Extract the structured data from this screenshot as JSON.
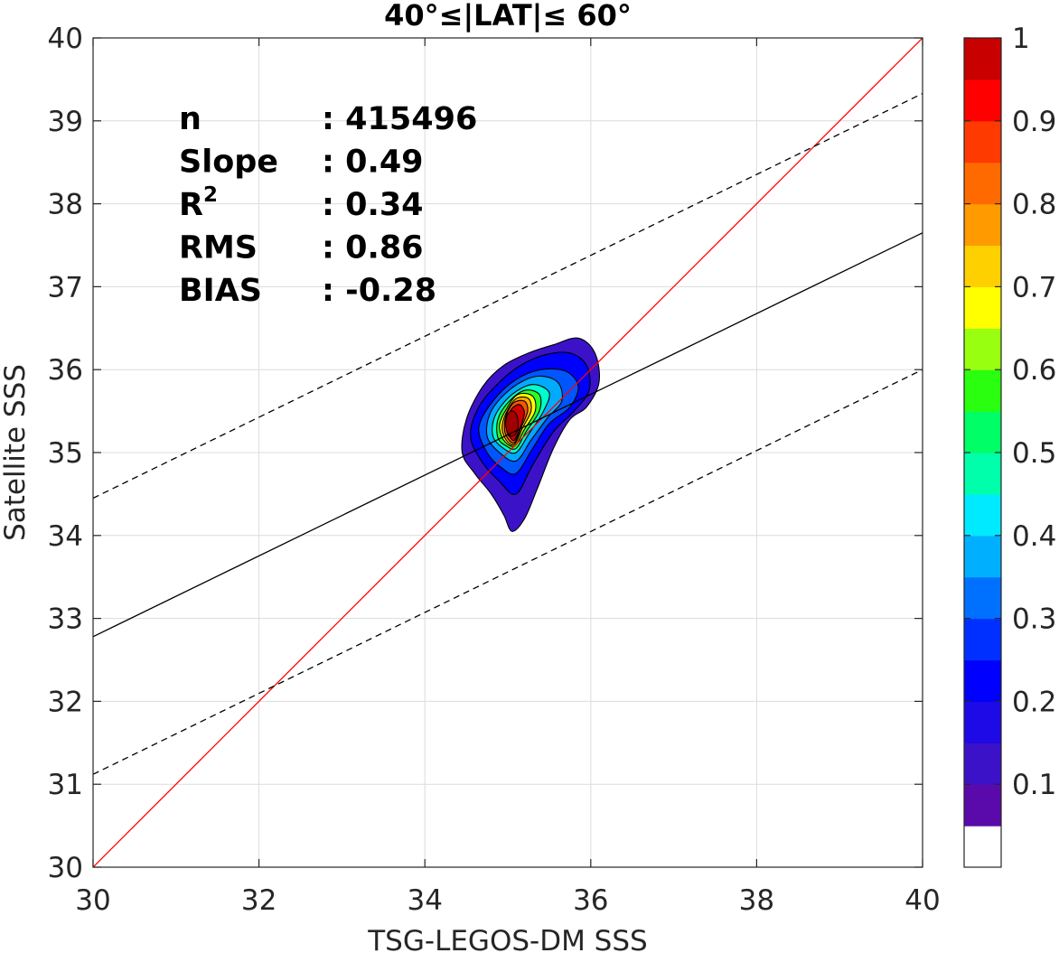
{
  "chart_data": {
    "type": "heatmap",
    "subtype": "density-contour-scatter",
    "title": "40°≤|LAT|≤ 60°",
    "xlabel": "TSG-LEGOS-DM SSS",
    "ylabel": "Satellite SSS",
    "xlim": [
      30,
      40
    ],
    "ylim": [
      30,
      40
    ],
    "xticks": [
      30,
      32,
      34,
      36,
      38,
      40
    ],
    "yticks": [
      30,
      31,
      32,
      33,
      34,
      35,
      36,
      37,
      38,
      39,
      40
    ],
    "grid": true,
    "stats": [
      {
        "label": "n",
        "value": ": 415496"
      },
      {
        "label": "Slope",
        "value": ": 0.49"
      },
      {
        "label": "R",
        "label_sup": "2",
        "value": ": 0.34"
      },
      {
        "label": "RMS",
        "value": ": 0.86"
      },
      {
        "label": "BIAS",
        "value": ": -0.28"
      }
    ],
    "lines": [
      {
        "kind": "one-to-one",
        "color": "#ff0000",
        "style": "solid",
        "points": [
          [
            30,
            30
          ],
          [
            40,
            40
          ]
        ]
      },
      {
        "kind": "regression",
        "color": "#000000",
        "style": "solid",
        "points": [
          [
            30,
            32.78
          ],
          [
            40,
            37.65
          ]
        ]
      },
      {
        "kind": "upper-bound",
        "color": "#000000",
        "style": "dashed",
        "points": [
          [
            30,
            34.45
          ],
          [
            40,
            39.33
          ]
        ]
      },
      {
        "kind": "lower-bound",
        "color": "#000000",
        "style": "dashed",
        "points": [
          [
            30,
            31.12
          ],
          [
            40,
            36.0
          ]
        ]
      }
    ],
    "density_peak": {
      "x": 35.05,
      "y": 35.35
    },
    "contours": [
      {
        "level": 0.05,
        "color": "#3c12c8",
        "points": [
          [
            35.05,
            34.05
          ],
          [
            35.2,
            34.2
          ],
          [
            35.35,
            34.55
          ],
          [
            35.55,
            35.05
          ],
          [
            35.75,
            35.4
          ],
          [
            35.95,
            35.55
          ],
          [
            36.1,
            35.85
          ],
          [
            36.05,
            36.2
          ],
          [
            35.85,
            36.38
          ],
          [
            35.55,
            36.3
          ],
          [
            35.25,
            36.2
          ],
          [
            34.95,
            36.05
          ],
          [
            34.7,
            35.8
          ],
          [
            34.5,
            35.4
          ],
          [
            34.45,
            35.0
          ],
          [
            34.6,
            34.75
          ],
          [
            34.8,
            34.5
          ],
          [
            34.95,
            34.25
          ]
        ]
      },
      {
        "level": 0.1,
        "color": "#0000ff",
        "points": [
          [
            35.1,
            34.5
          ],
          [
            35.3,
            34.85
          ],
          [
            35.55,
            35.25
          ],
          [
            35.8,
            35.5
          ],
          [
            35.98,
            35.75
          ],
          [
            35.95,
            36.05
          ],
          [
            35.75,
            36.2
          ],
          [
            35.45,
            36.18
          ],
          [
            35.15,
            36.05
          ],
          [
            34.9,
            35.85
          ],
          [
            34.65,
            35.55
          ],
          [
            34.55,
            35.2
          ],
          [
            34.68,
            34.9
          ],
          [
            34.9,
            34.65
          ]
        ]
      },
      {
        "level": 0.2,
        "color": "#0055ff",
        "points": [
          [
            35.1,
            34.75
          ],
          [
            35.3,
            35.05
          ],
          [
            35.5,
            35.35
          ],
          [
            35.75,
            35.55
          ],
          [
            35.85,
            35.8
          ],
          [
            35.7,
            35.98
          ],
          [
            35.4,
            36.0
          ],
          [
            35.1,
            35.88
          ],
          [
            34.82,
            35.62
          ],
          [
            34.65,
            35.3
          ],
          [
            34.75,
            35.0
          ],
          [
            34.92,
            34.82
          ]
        ]
      },
      {
        "level": 0.3,
        "color": "#00aaff",
        "points": [
          [
            35.1,
            34.9
          ],
          [
            35.28,
            35.15
          ],
          [
            35.48,
            35.42
          ],
          [
            35.65,
            35.62
          ],
          [
            35.6,
            35.85
          ],
          [
            35.35,
            35.92
          ],
          [
            35.05,
            35.78
          ],
          [
            34.8,
            35.5
          ],
          [
            34.75,
            35.2
          ],
          [
            34.9,
            35.0
          ]
        ]
      },
      {
        "level": 0.4,
        "color": "#00ffcc",
        "points": [
          [
            35.1,
            35.0
          ],
          [
            35.25,
            35.22
          ],
          [
            35.42,
            35.48
          ],
          [
            35.5,
            35.72
          ],
          [
            35.3,
            35.82
          ],
          [
            35.05,
            35.7
          ],
          [
            34.85,
            35.45
          ],
          [
            34.82,
            35.2
          ],
          [
            34.95,
            35.05
          ]
        ]
      },
      {
        "level": 0.5,
        "color": "#2aff2a",
        "points": [
          [
            35.1,
            35.05
          ],
          [
            35.22,
            35.25
          ],
          [
            35.38,
            35.5
          ],
          [
            35.38,
            35.7
          ],
          [
            35.2,
            35.75
          ],
          [
            35.0,
            35.6
          ],
          [
            34.88,
            35.4
          ],
          [
            34.88,
            35.18
          ],
          [
            34.98,
            35.08
          ]
        ]
      },
      {
        "level": 0.6,
        "color": "#ffff00",
        "points": [
          [
            35.08,
            35.08
          ],
          [
            35.2,
            35.28
          ],
          [
            35.33,
            35.5
          ],
          [
            35.3,
            35.68
          ],
          [
            35.12,
            35.7
          ],
          [
            34.98,
            35.52
          ],
          [
            34.9,
            35.33
          ],
          [
            34.95,
            35.15
          ]
        ]
      },
      {
        "level": 0.7,
        "color": "#ffaa00",
        "points": [
          [
            35.08,
            35.1
          ],
          [
            35.18,
            35.3
          ],
          [
            35.28,
            35.5
          ],
          [
            35.25,
            35.65
          ],
          [
            35.1,
            35.65
          ],
          [
            34.98,
            35.48
          ],
          [
            34.93,
            35.3
          ],
          [
            34.98,
            35.15
          ]
        ]
      },
      {
        "level": 0.8,
        "color": "#ff5500",
        "points": [
          [
            35.08,
            35.12
          ],
          [
            35.16,
            35.3
          ],
          [
            35.24,
            35.5
          ],
          [
            35.2,
            35.62
          ],
          [
            35.07,
            35.6
          ],
          [
            34.98,
            35.45
          ],
          [
            34.96,
            35.28
          ],
          [
            35.0,
            35.17
          ]
        ]
      },
      {
        "level": 0.9,
        "color": "#cc0000",
        "points": [
          [
            35.08,
            35.15
          ],
          [
            35.15,
            35.3
          ],
          [
            35.2,
            35.48
          ],
          [
            35.14,
            35.58
          ],
          [
            35.04,
            35.52
          ],
          [
            34.99,
            35.38
          ],
          [
            34.99,
            35.25
          ],
          [
            35.03,
            35.18
          ]
        ]
      }
    ],
    "colorbar": {
      "ticks": [
        "0.1",
        "0.2",
        "0.3",
        "0.4",
        "0.5",
        "0.6",
        "0.7",
        "0.8",
        "0.9",
        "1"
      ],
      "tick_values": [
        0.1,
        0.2,
        0.3,
        0.4,
        0.5,
        0.6,
        0.7,
        0.8,
        0.9,
        1.0
      ],
      "levels": [
        0,
        0.05,
        0.1,
        0.15,
        0.2,
        0.25,
        0.3,
        0.35,
        0.4,
        0.45,
        0.5,
        0.55,
        0.6,
        0.65,
        0.7,
        0.75,
        0.8,
        0.85,
        0.9,
        0.95,
        1.0
      ],
      "colors": [
        "#ffffff",
        "#5a0aaa",
        "#3c12c8",
        "#1e0ae6",
        "#0000ff",
        "#0030ff",
        "#0070ff",
        "#00b0ff",
        "#00eaff",
        "#00ffaa",
        "#00ff66",
        "#2aff10",
        "#99ff10",
        "#ffff00",
        "#ffd000",
        "#ff9a00",
        "#ff6a00",
        "#ff3a00",
        "#ff0000",
        "#c80000",
        "#8a0000"
      ]
    }
  }
}
